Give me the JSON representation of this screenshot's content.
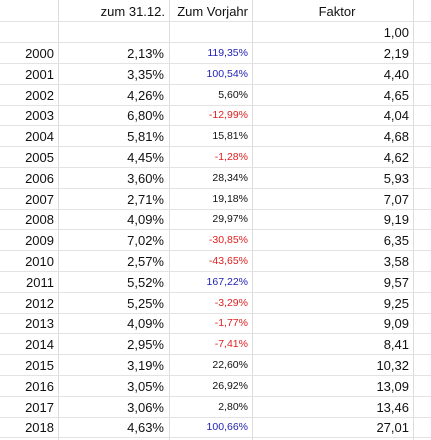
{
  "headers": {
    "col_b": "zum 31.12.",
    "col_c": "Zum Vorjahr",
    "col_d": "Faktor"
  },
  "start_factor": "1,00",
  "rows": [
    {
      "year": "2000",
      "rate": "2,13%",
      "change": "119,35%",
      "factor": "2,19",
      "sign": "pos"
    },
    {
      "year": "2001",
      "rate": "3,35%",
      "change": "100,54%",
      "factor": "4,40",
      "sign": "pos"
    },
    {
      "year": "2002",
      "rate": "4,26%",
      "change": "5,60%",
      "factor": "4,65",
      "sign": "plain"
    },
    {
      "year": "2003",
      "rate": "6,80%",
      "change": "-12,99%",
      "factor": "4,04",
      "sign": "neg"
    },
    {
      "year": "2004",
      "rate": "5,81%",
      "change": "15,81%",
      "factor": "4,68",
      "sign": "plain"
    },
    {
      "year": "2005",
      "rate": "4,45%",
      "change": "-1,28%",
      "factor": "4,62",
      "sign": "neg"
    },
    {
      "year": "2006",
      "rate": "3,60%",
      "change": "28,34%",
      "factor": "5,93",
      "sign": "plain"
    },
    {
      "year": "2007",
      "rate": "2,71%",
      "change": "19,18%",
      "factor": "7,07",
      "sign": "plain"
    },
    {
      "year": "2008",
      "rate": "4,09%",
      "change": "29,97%",
      "factor": "9,19",
      "sign": "plain"
    },
    {
      "year": "2009",
      "rate": "7,02%",
      "change": "-30,85%",
      "factor": "6,35",
      "sign": "neg"
    },
    {
      "year": "2010",
      "rate": "2,57%",
      "change": "-43,65%",
      "factor": "3,58",
      "sign": "neg"
    },
    {
      "year": "2011",
      "rate": "5,52%",
      "change": "167,22%",
      "factor": "9,57",
      "sign": "pos"
    },
    {
      "year": "2012",
      "rate": "5,25%",
      "change": "-3,29%",
      "factor": "9,25",
      "sign": "neg"
    },
    {
      "year": "2013",
      "rate": "4,09%",
      "change": "-1,77%",
      "factor": "9,09",
      "sign": "neg"
    },
    {
      "year": "2014",
      "rate": "2,95%",
      "change": "-7,41%",
      "factor": "8,41",
      "sign": "neg"
    },
    {
      "year": "2015",
      "rate": "3,19%",
      "change": "22,60%",
      "factor": "10,32",
      "sign": "plain"
    },
    {
      "year": "2016",
      "rate": "3,05%",
      "change": "26,92%",
      "factor": "13,09",
      "sign": "plain"
    },
    {
      "year": "2017",
      "rate": "3,06%",
      "change": "2,80%",
      "factor": "13,46",
      "sign": "plain"
    },
    {
      "year": "2018",
      "rate": "4,63%",
      "change": "100,66%",
      "factor": "27,01",
      "sign": "pos"
    }
  ]
}
